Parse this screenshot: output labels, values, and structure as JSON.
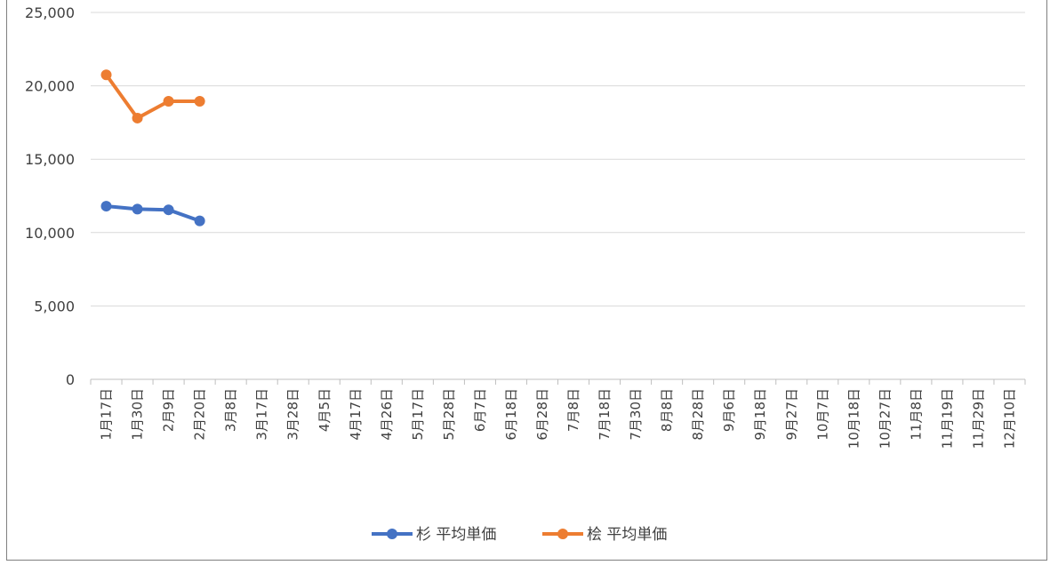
{
  "chart_data": {
    "type": "line",
    "title": "",
    "xlabel": "",
    "ylabel": "",
    "ylim": [
      0,
      25000
    ],
    "y_ticks": [
      "0",
      "5,000",
      "10,000",
      "15,000",
      "20,000",
      "25,000"
    ],
    "y_tick_values": [
      0,
      5000,
      10000,
      15000,
      20000,
      25000
    ],
    "categories": [
      "1月17日",
      "1月30日",
      "2月9日",
      "2月20日",
      "3月8日",
      "3月17日",
      "3月28日",
      "4月5日",
      "4月17日",
      "4月26日",
      "5月17日",
      "5月28日",
      "6月7日",
      "6月18日",
      "6月28日",
      "7月8日",
      "7月18日",
      "7月30日",
      "8月8日",
      "8月28日",
      "9月6日",
      "9月18日",
      "9月27日",
      "10月7日",
      "10月18日",
      "10月27日",
      "11月8日",
      "11月19日",
      "11月29日",
      "12月10日"
    ],
    "series": [
      {
        "name": "杉 平均単価",
        "color": "#4472c4",
        "values": [
          11800,
          11600,
          11550,
          10800,
          null,
          null,
          null,
          null,
          null,
          null,
          null,
          null,
          null,
          null,
          null,
          null,
          null,
          null,
          null,
          null,
          null,
          null,
          null,
          null,
          null,
          null,
          null,
          null,
          null,
          null
        ]
      },
      {
        "name": "桧 平均単価",
        "color": "#ed7d31",
        "values": [
          20750,
          17800,
          18950,
          18950,
          null,
          null,
          null,
          null,
          null,
          null,
          null,
          null,
          null,
          null,
          null,
          null,
          null,
          null,
          null,
          null,
          null,
          null,
          null,
          null,
          null,
          null,
          null,
          null,
          null,
          null
        ]
      }
    ],
    "grid": true,
    "gridline_color": "#d9d9d9",
    "legend_position": "bottom"
  }
}
